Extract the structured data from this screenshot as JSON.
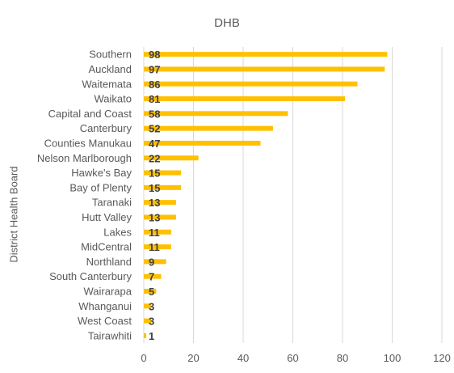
{
  "chart_data": {
    "type": "bar",
    "orientation": "horizontal",
    "title": "DHB",
    "xlabel": "",
    "ylabel": "District Health Board",
    "xlim": [
      0,
      120
    ],
    "xticks": [
      0,
      20,
      40,
      60,
      80,
      100,
      120
    ],
    "grid": "vertical",
    "legend": "none",
    "bar_color": "#FFC000",
    "label_color": "#404040",
    "categories": [
      "Southern",
      "Auckland",
      "Waitemata",
      "Waikato",
      "Capital and Coast",
      "Canterbury",
      "Counties Manukau",
      "Nelson Marlborough",
      "Hawke's Bay",
      "Bay of Plenty",
      "Taranaki",
      "Hutt Valley",
      "Lakes",
      "MidCentral",
      "Northland",
      "South Canterbury",
      "Wairarapa",
      "Whanganui",
      "West Coast",
      "Tairawhiti"
    ],
    "values": [
      98,
      97,
      86,
      81,
      58,
      52,
      47,
      22,
      15,
      15,
      13,
      13,
      11,
      11,
      9,
      7,
      5,
      3,
      3,
      1
    ]
  }
}
